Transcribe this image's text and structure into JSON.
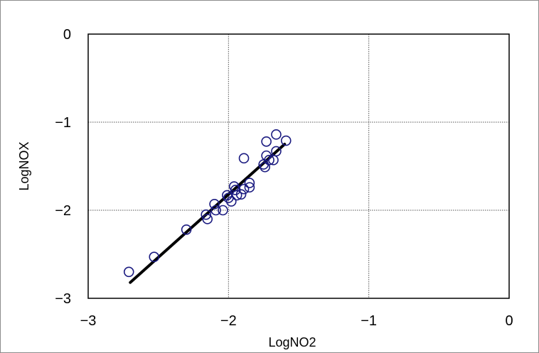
{
  "chart_data": {
    "type": "scatter",
    "title": "",
    "xlabel": "LogNO2",
    "ylabel": "LogNOX",
    "xlim": [
      -3,
      0
    ],
    "ylim": [
      -3,
      0
    ],
    "x_ticks": [
      -3,
      -2,
      -1,
      0
    ],
    "y_ticks": [
      -3,
      -2,
      -1,
      0
    ],
    "x_tick_labels": [
      "−3",
      "−2",
      "−1",
      "0"
    ],
    "y_tick_labels": [
      "−3",
      "−2",
      "−1",
      "0"
    ],
    "grid": true,
    "legend": "none",
    "series": [
      {
        "type": "scatter",
        "marker": "open-circle",
        "color": "#1a1a80",
        "points": [
          [
            -2.71,
            -2.7
          ],
          [
            -2.53,
            -2.53
          ],
          [
            -2.3,
            -2.22
          ],
          [
            -2.16,
            -2.05
          ],
          [
            -2.15,
            -2.1
          ],
          [
            -2.1,
            -1.93
          ],
          [
            -2.09,
            -2.0
          ],
          [
            -2.04,
            -2.0
          ],
          [
            -2.01,
            -1.83
          ],
          [
            -2.0,
            -1.86
          ],
          [
            -1.98,
            -1.9
          ],
          [
            -1.96,
            -1.73
          ],
          [
            -1.95,
            -1.77
          ],
          [
            -1.94,
            -1.83
          ],
          [
            -1.91,
            -1.82
          ],
          [
            -1.89,
            -1.76
          ],
          [
            -1.89,
            -1.41
          ],
          [
            -1.85,
            -1.69
          ],
          [
            -1.85,
            -1.74
          ],
          [
            -1.75,
            -1.48
          ],
          [
            -1.74,
            -1.51
          ],
          [
            -1.73,
            -1.38
          ],
          [
            -1.73,
            -1.22
          ],
          [
            -1.71,
            -1.43
          ],
          [
            -1.68,
            -1.43
          ],
          [
            -1.66,
            -1.14
          ],
          [
            -1.66,
            -1.33
          ],
          [
            -1.59,
            -1.21
          ]
        ]
      },
      {
        "type": "line",
        "color": "#000000",
        "x": [
          -2.7,
          -1.6
        ],
        "y": [
          -2.82,
          -1.25
        ]
      }
    ]
  }
}
